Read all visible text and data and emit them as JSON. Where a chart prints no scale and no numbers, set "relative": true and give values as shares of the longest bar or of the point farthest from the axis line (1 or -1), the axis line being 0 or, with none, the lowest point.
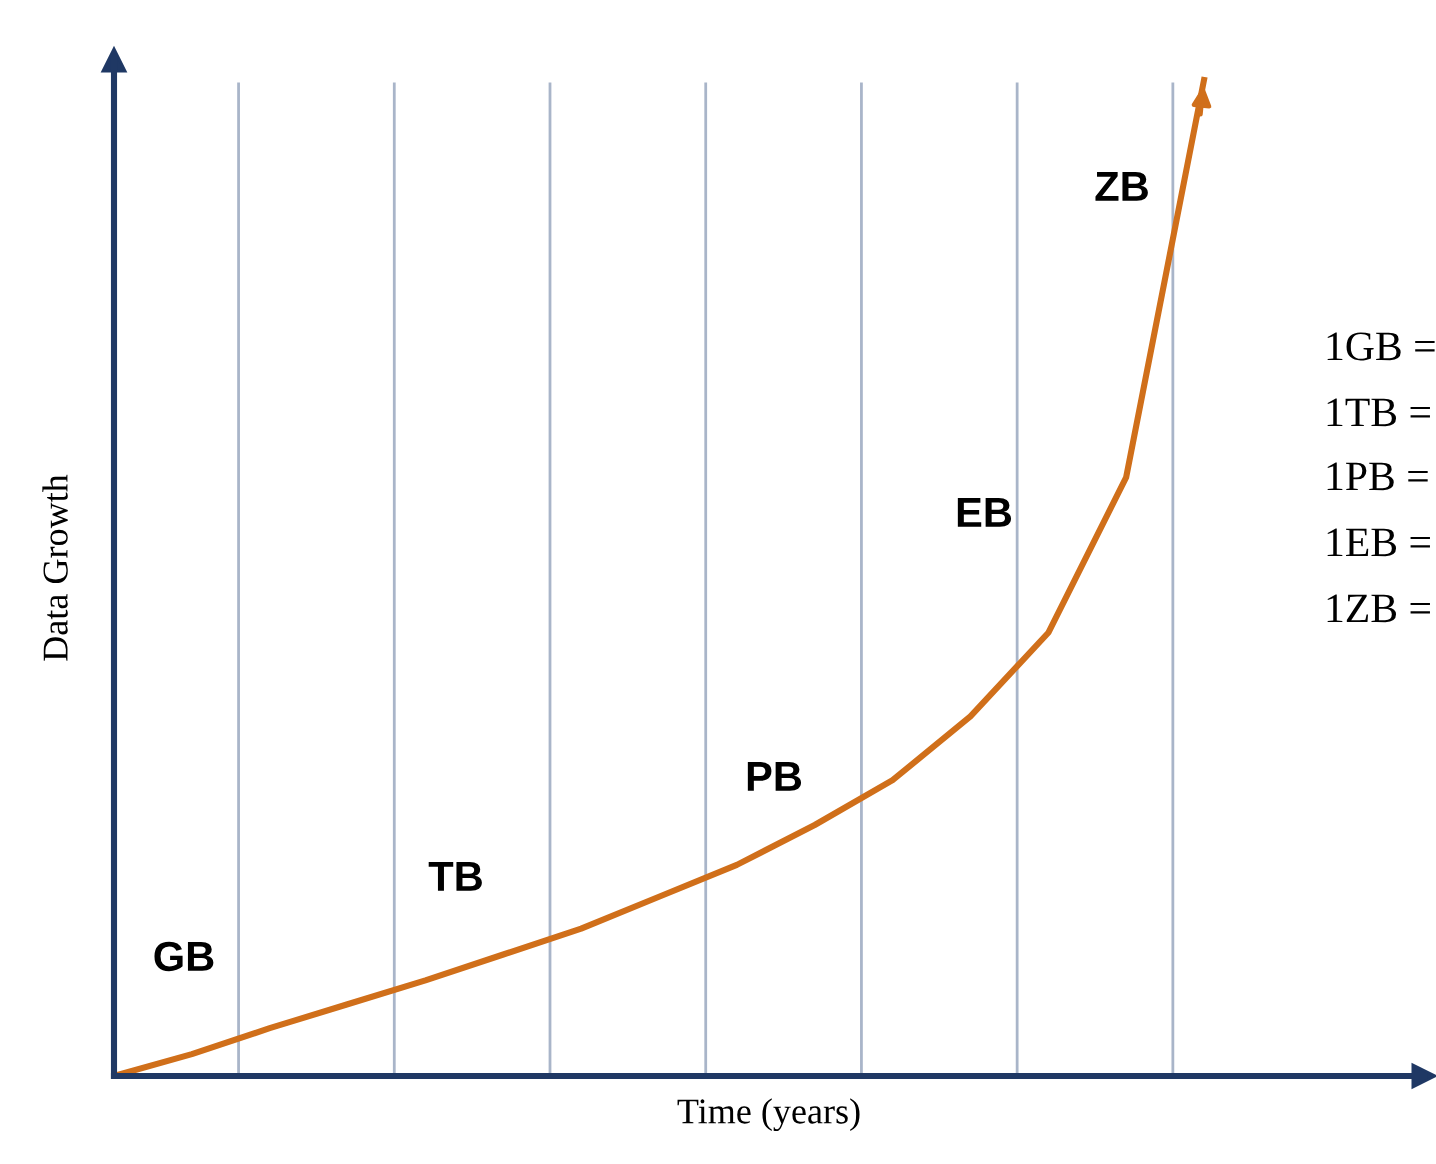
{
  "chart_data": {
    "type": "line",
    "relative": true,
    "xlabel": "Time (years)",
    "ylabel": "Data Growth",
    "categories": [
      null,
      null,
      null,
      null,
      null,
      null,
      null,
      null,
      null,
      null,
      null,
      null,
      null,
      null,
      null
    ],
    "series": [
      {
        "color": "#d06f1a",
        "values": [
          0,
          0.022,
          0.048,
          0.072,
          0.096,
          0.122,
          0.148,
          0.18,
          0.212,
          0.252,
          0.297,
          0.361,
          0.445,
          0.601,
          1.0
        ]
      }
    ],
    "annotations": [
      "GB",
      "TB",
      "PB",
      "EB",
      "ZB",
      "1GB =",
      "1TB =",
      "1PB =",
      "1EB =",
      "1ZB ="
    ],
    "grid": "x",
    "marker": "none",
    "line_style": "solid",
    "legend": false,
    "tick_labels": false
  }
}
